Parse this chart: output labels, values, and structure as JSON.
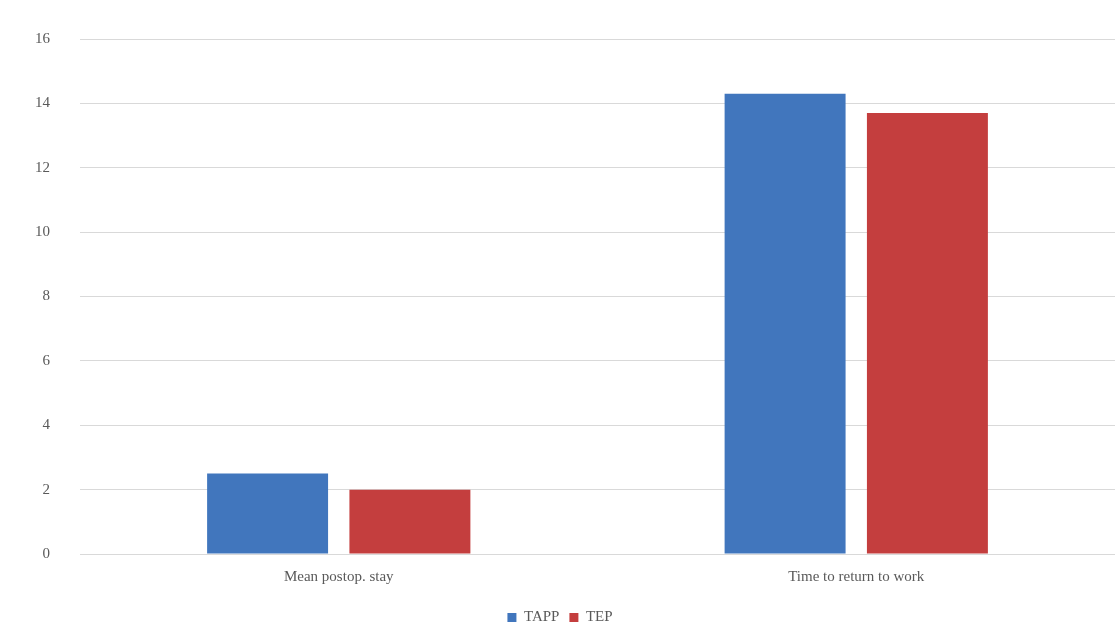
{
  "chart_data": {
    "type": "bar",
    "categories": [
      "Mean postop. stay",
      "Time to return to work"
    ],
    "series": [
      {
        "name": "TAPP",
        "color": "#4176bd",
        "values": [
          2.5,
          14.3
        ]
      },
      {
        "name": "TEP",
        "color": "#c43e3e",
        "values": [
          2,
          13.7
        ]
      }
    ],
    "ylim": [
      0,
      16
    ],
    "yticks": [
      0,
      2,
      4,
      6,
      8,
      10,
      12,
      14,
      16
    ],
    "grid": "y",
    "legend": "bottom"
  }
}
